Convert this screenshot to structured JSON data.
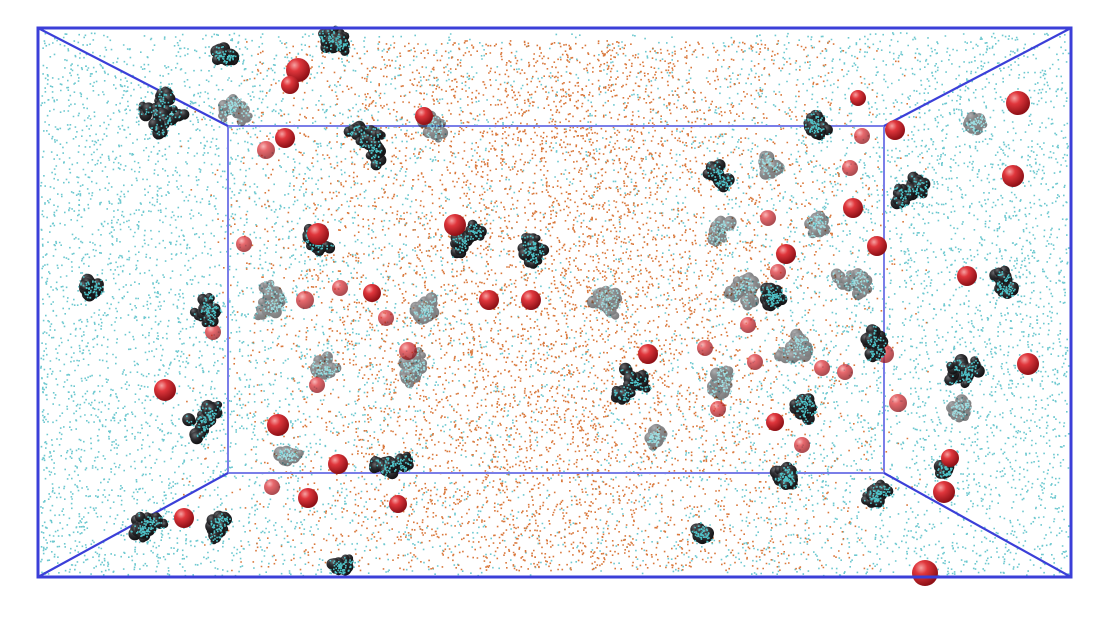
{
  "colors": {
    "background": "#ffffff",
    "box_edges": "#3b3fd8",
    "water_particles": "#6cc8cf",
    "organic_particles": "#d9773a",
    "molecule_clusters": "#2b2b2e",
    "molecule_highlight": "#4fc3c9",
    "ions": "#d2262f"
  },
  "legend": []
}
